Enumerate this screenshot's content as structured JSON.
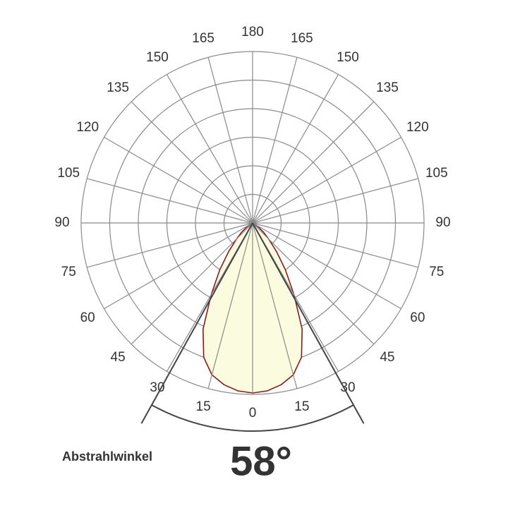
{
  "chart_data": {
    "type": "polar",
    "label": "Abstrahlwinkel",
    "beam_angle": {
      "value": 58,
      "label": "58°"
    },
    "angle_ticks": [
      0,
      15,
      30,
      45,
      60,
      75,
      90,
      105,
      120,
      135,
      150,
      165,
      180
    ],
    "rlim": [
      0,
      6
    ],
    "rticks": [
      1,
      2,
      3,
      4,
      5,
      6
    ],
    "series": [
      {
        "color": "#8b1a1a",
        "fill": "#fbfbe0",
        "angles": [
          -90,
          -60,
          -55,
          -50,
          -45,
          -40,
          -35,
          -30,
          -25,
          -20,
          -15,
          -10,
          -5,
          0,
          5,
          10,
          15,
          20,
          25,
          30,
          35,
          40,
          45,
          50,
          55,
          60,
          90
        ],
        "values": [
          0,
          0.1,
          0.25,
          0.5,
          0.8,
          1.3,
          2.0,
          2.9,
          4.1,
          5.0,
          5.5,
          5.75,
          5.9,
          5.95,
          5.9,
          5.75,
          5.5,
          5.0,
          4.1,
          2.9,
          2.0,
          1.3,
          0.8,
          0.5,
          0.25,
          0.1,
          0
        ]
      }
    ]
  }
}
